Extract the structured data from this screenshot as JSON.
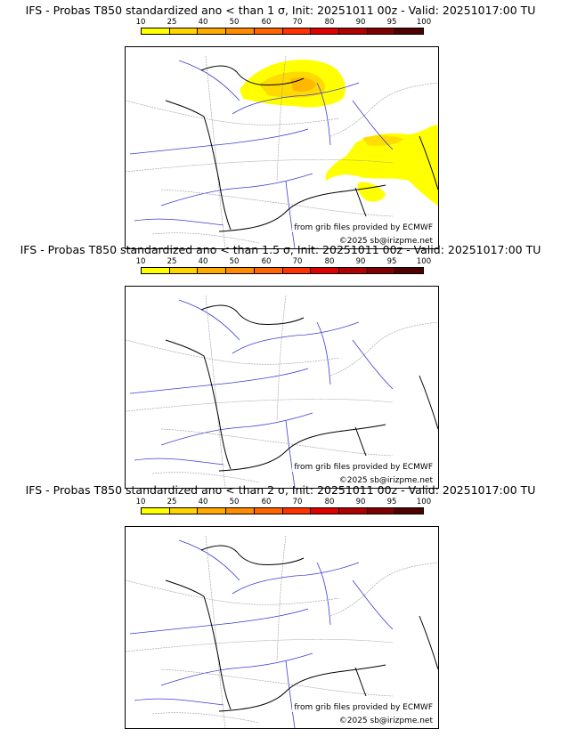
{
  "colors": {
    "scale": [
      "#ffff00",
      "#ffd400",
      "#ffaa00",
      "#ff8c00",
      "#ff6600",
      "#ff3300",
      "#e00000",
      "#b00000",
      "#800000",
      "#500000"
    ],
    "coast": "#000000",
    "rivers": "#3b3bd8",
    "borders": "#999999"
  },
  "colorbar_ticks": [
    "10",
    "25",
    "40",
    "50",
    "60",
    "70",
    "80",
    "90",
    "95",
    "100"
  ],
  "panels": [
    {
      "title": "IFS - Probas T850  standardized ano < than 1 σ, Init: 20251011 00z - Valid: 20251017:00 TU",
      "source": "from grib files provided by ECMWF",
      "copyright": "©2025 sb@irizpme.net",
      "probability_areas": [
        "Northeast France / Benelux (10–40%)",
        "Alps / Southeast France / Corsica (10–25%)"
      ]
    },
    {
      "title": "IFS - Probas T850  standardized ano < than 1.5 σ, Init: 20251011 00z - Valid: 20251017:00 TU",
      "source": "from grib files provided by ECMWF",
      "copyright": "©2025 sb@irizpme.net",
      "probability_areas": []
    },
    {
      "title": "IFS - Probas T850  standardized ano < than 2 σ, Init: 20251011 00z - Valid: 20251017:00 TU",
      "source": "from grib files provided by ECMWF",
      "copyright": "©2025 sb@irizpme.net",
      "probability_areas": []
    }
  ]
}
